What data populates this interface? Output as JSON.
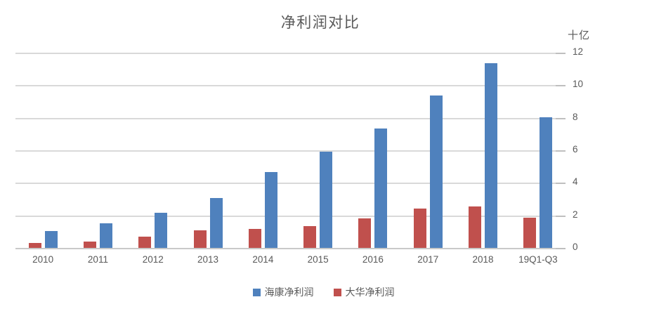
{
  "title": "净利润对比",
  "colors": {
    "haikang_blue": "#4F81BD",
    "dahua_red": "#C0504D",
    "gridline": "#D9D9D9",
    "axis_text": "#595959"
  },
  "chart_data": {
    "type": "bar",
    "title": "净利润对比",
    "ylabel": "十亿",
    "ylim": [
      0,
      12
    ],
    "yticks": [
      0,
      2,
      4,
      6,
      8,
      10,
      12
    ],
    "grid": true,
    "legend_position": "bottom",
    "value_axis_side": "right",
    "categories": [
      "2010",
      "2011",
      "2012",
      "2013",
      "2014",
      "2015",
      "2016",
      "2017",
      "2018",
      "19Q1-Q3"
    ],
    "series": [
      {
        "key": "haikang",
        "name": "海康净利润",
        "color": "#4F81BD",
        "values": [
          1.05,
          1.5,
          2.15,
          3.05,
          4.65,
          5.9,
          7.35,
          9.35,
          11.35,
          8.05
        ]
      },
      {
        "key": "dahua",
        "name": "大华净利润",
        "color": "#C0504D",
        "values": [
          0.3,
          0.4,
          0.7,
          1.1,
          1.15,
          1.35,
          1.8,
          2.4,
          2.55,
          1.85
        ]
      }
    ],
    "bar_draw_order": [
      "dahua",
      "haikang"
    ]
  }
}
